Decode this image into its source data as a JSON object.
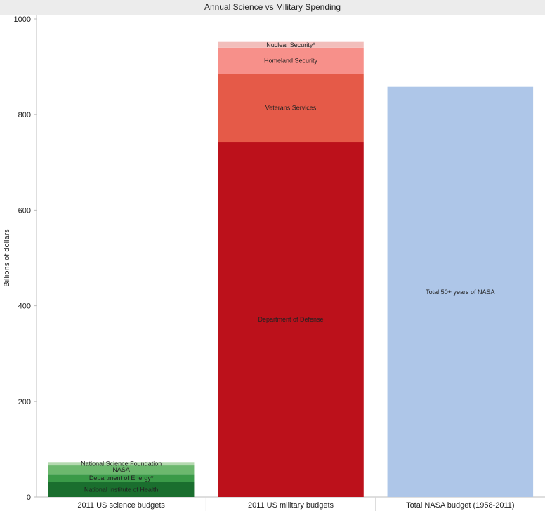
{
  "chart_data": {
    "type": "bar",
    "stacked": true,
    "title": "Annual Science vs Military Spending",
    "ylabel": "Billions of dollars",
    "xlabel": "",
    "ylim": [
      0,
      1000
    ],
    "yticks": [
      0,
      200,
      400,
      600,
      800,
      1000
    ],
    "grid": false,
    "categories": [
      "2011 US science budgets",
      "2011 US military budgets",
      "Total NASA budget (1958-2011)"
    ],
    "stacks": [
      {
        "category": "2011 US science budgets",
        "segments": [
          {
            "label": "National Institute of Health",
            "value": 31,
            "color": "#1a6e2e"
          },
          {
            "label": "Department of Energy*",
            "value": 17,
            "color": "#3a9a48"
          },
          {
            "label": "NASA",
            "value": 18,
            "color": "#6cb86e"
          },
          {
            "label": "National Science Foundation",
            "value": 7,
            "color": "#b5d9b0"
          }
        ]
      },
      {
        "category": "2011 US military budgets",
        "segments": [
          {
            "label": "Department of Defense",
            "value": 743,
            "color": "#bc111b"
          },
          {
            "label": "Veterans Services",
            "value": 142,
            "color": "#e55a48"
          },
          {
            "label": "Homeland Security",
            "value": 55,
            "color": "#f7908a"
          },
          {
            "label": "Nuclear Security*",
            "value": 12,
            "color": "#f2bebb"
          }
        ]
      },
      {
        "category": "Total NASA budget (1958-2011)",
        "segments": [
          {
            "label": "Total 50+ years of NASA",
            "value": 858,
            "color": "#aec6e8"
          }
        ]
      }
    ]
  }
}
